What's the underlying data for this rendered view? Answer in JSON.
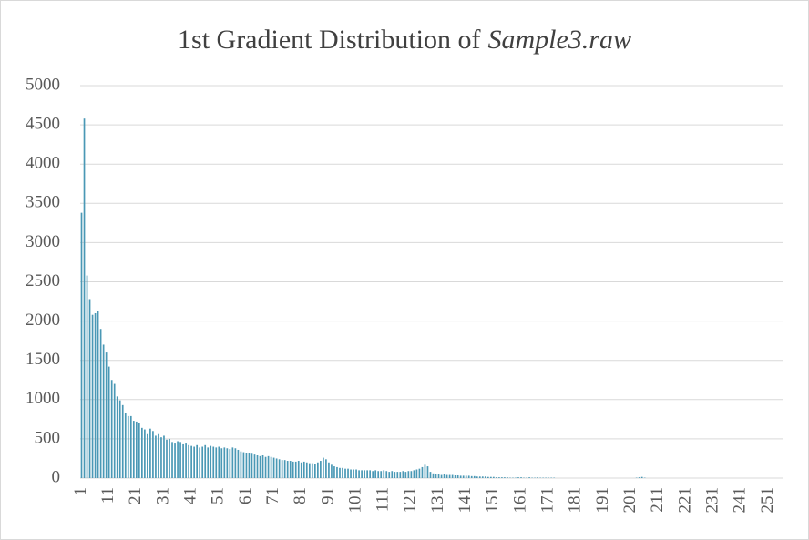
{
  "chart_data": {
    "type": "bar",
    "title": [
      "1st Gradient Distribution of",
      "Sample3.raw"
    ],
    "categories": [
      "1",
      null,
      null,
      null,
      null,
      null,
      null,
      null,
      null,
      null,
      "11",
      null,
      null,
      null,
      null,
      null,
      null,
      null,
      null,
      null,
      "21",
      null,
      null,
      null,
      null,
      null,
      null,
      null,
      null,
      null,
      "31",
      null,
      null,
      null,
      null,
      null,
      null,
      null,
      null,
      null,
      "41",
      null,
      null,
      null,
      null,
      null,
      null,
      null,
      null,
      null,
      "51",
      null,
      null,
      null,
      null,
      null,
      null,
      null,
      null,
      null,
      "61",
      null,
      null,
      null,
      null,
      null,
      null,
      null,
      null,
      null,
      "71",
      null,
      null,
      null,
      null,
      null,
      null,
      null,
      null,
      null,
      "81",
      null,
      null,
      null,
      null,
      null,
      null,
      null,
      null,
      null,
      "91",
      null,
      null,
      null,
      null,
      null,
      null,
      null,
      null,
      null,
      "101",
      null,
      null,
      null,
      null,
      null,
      null,
      null,
      null,
      null,
      "111",
      null,
      null,
      null,
      null,
      null,
      null,
      null,
      null,
      null,
      "121",
      null,
      null,
      null,
      null,
      null,
      null,
      null,
      null,
      null,
      "131",
      null,
      null,
      null,
      null,
      null,
      null,
      null,
      null,
      null,
      "141",
      null,
      null,
      null,
      null,
      null,
      null,
      null,
      null,
      null,
      "151",
      null,
      null,
      null,
      null,
      null,
      null,
      null,
      null,
      null,
      "161",
      null,
      null,
      null,
      null,
      null,
      null,
      null,
      null,
      null,
      "171",
      null,
      null,
      null,
      null,
      null,
      null,
      null,
      null,
      null,
      "181",
      null,
      null,
      null,
      null,
      null,
      null,
      null,
      null,
      null,
      "191",
      null,
      null,
      null,
      null,
      null,
      null,
      null,
      null,
      null,
      "201",
      null,
      null,
      null,
      null,
      null,
      null,
      null,
      null,
      null,
      "211",
      null,
      null,
      null,
      null,
      null,
      null,
      null,
      null,
      null,
      "221",
      null,
      null,
      null,
      null,
      null,
      null,
      null,
      null,
      null,
      "231",
      null,
      null,
      null,
      null,
      null,
      null,
      null,
      null,
      null,
      "241",
      null,
      null,
      null,
      null,
      null,
      null,
      null,
      null,
      null,
      "251",
      null,
      null,
      null,
      null,
      null
    ],
    "values": [
      3380,
      4580,
      2580,
      2280,
      2080,
      2100,
      2130,
      1900,
      1700,
      1600,
      1420,
      1250,
      1200,
      1040,
      990,
      930,
      830,
      790,
      790,
      730,
      720,
      700,
      640,
      620,
      560,
      630,
      600,
      540,
      560,
      520,
      540,
      490,
      500,
      460,
      440,
      470,
      460,
      430,
      440,
      420,
      410,
      400,
      420,
      390,
      400,
      420,
      390,
      410,
      400,
      390,
      400,
      380,
      390,
      380,
      370,
      390,
      380,
      360,
      340,
      330,
      320,
      320,
      310,
      300,
      290,
      280,
      290,
      270,
      280,
      270,
      260,
      250,
      240,
      230,
      230,
      220,
      220,
      210,
      210,
      220,
      200,
      210,
      200,
      190,
      190,
      180,
      200,
      220,
      260,
      240,
      200,
      170,
      150,
      140,
      130,
      130,
      120,
      120,
      110,
      110,
      110,
      100,
      100,
      100,
      100,
      100,
      90,
      100,
      90,
      90,
      100,
      90,
      80,
      90,
      80,
      80,
      80,
      90,
      80,
      90,
      90,
      100,
      110,
      120,
      140,
      170,
      150,
      80,
      60,
      50,
      50,
      40,
      50,
      40,
      40,
      40,
      35,
      35,
      30,
      30,
      30,
      30,
      25,
      25,
      20,
      20,
      20,
      20,
      15,
      15,
      15,
      10,
      10,
      10,
      10,
      10,
      5,
      5,
      5,
      10,
      10,
      5,
      5,
      10,
      5,
      5,
      10,
      5,
      5,
      5,
      5,
      5,
      5,
      0,
      0,
      0,
      0,
      0,
      0,
      0,
      0,
      0,
      0,
      0,
      0,
      0,
      0,
      0,
      0,
      0,
      0,
      0,
      0,
      0,
      0,
      0,
      0,
      0,
      0,
      0,
      0,
      0,
      5,
      10,
      15,
      5,
      0,
      0,
      0,
      0,
      0,
      0,
      0,
      0,
      0,
      0,
      0,
      0,
      0,
      0,
      0,
      0,
      0,
      0,
      0,
      0,
      0,
      0,
      0,
      0,
      0,
      0,
      0,
      0,
      0,
      0,
      0,
      0,
      0,
      0,
      0,
      0,
      0,
      0,
      0,
      0,
      0,
      0,
      0,
      0,
      0,
      0,
      0,
      0,
      0,
      0
    ],
    "color": "#4a98b5",
    "ylim": [
      0,
      5000
    ],
    "yticks": [
      0,
      500,
      1000,
      1500,
      2000,
      2500,
      3000,
      3500,
      4000,
      4500,
      5000
    ],
    "grid": true
  }
}
